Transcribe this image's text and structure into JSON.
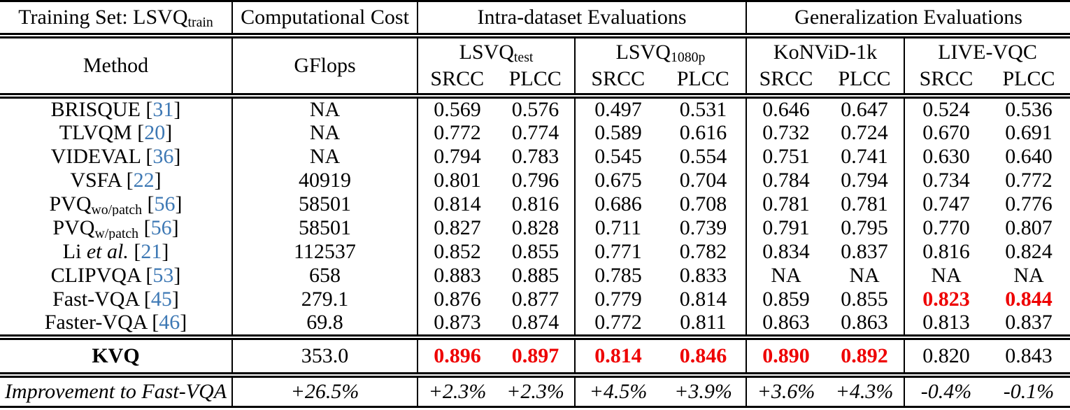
{
  "colors": {
    "citation_blue": "#3d78b4",
    "highlight_red": "#ee0000",
    "text": "#000000",
    "background": "#ffffff"
  },
  "citation_brackets": [
    "[",
    "]"
  ],
  "header": {
    "training_set": {
      "text": "Training Set: LSVQ",
      "sub": "train"
    },
    "computational_cost": "Computational Cost",
    "intra_group": "Intra-dataset Evaluations",
    "generalization_group": "Generalization Evaluations",
    "method": "Method",
    "gflops": "GFlops",
    "srcc": "SRCC",
    "plcc": "PLCC",
    "datasets": [
      {
        "name": "LSVQ",
        "sub": "test"
      },
      {
        "name": "LSVQ",
        "sub": "1080p"
      },
      {
        "name": "KoNViD-1k",
        "sub": ""
      },
      {
        "name": "LIVE-VQC",
        "sub": ""
      }
    ]
  },
  "rows": [
    {
      "method": "BRISQUE",
      "italic": "",
      "sub": "",
      "cite": "31",
      "gflops": "NA",
      "values": [
        "0.569",
        "0.576",
        "0.497",
        "0.531",
        "0.646",
        "0.647",
        "0.524",
        "0.536"
      ],
      "red": []
    },
    {
      "method": "TLVQM",
      "italic": "",
      "sub": "",
      "cite": "20",
      "gflops": "NA",
      "values": [
        "0.772",
        "0.774",
        "0.589",
        "0.616",
        "0.732",
        "0.724",
        "0.670",
        "0.691"
      ],
      "red": []
    },
    {
      "method": "VIDEVAL",
      "italic": "",
      "sub": "",
      "cite": "36",
      "gflops": "NA",
      "values": [
        "0.794",
        "0.783",
        "0.545",
        "0.554",
        "0.751",
        "0.741",
        "0.630",
        "0.640"
      ],
      "red": []
    },
    {
      "method": "VSFA",
      "italic": "",
      "sub": "",
      "cite": "22",
      "gflops": "40919",
      "values": [
        "0.801",
        "0.796",
        "0.675",
        "0.704",
        "0.784",
        "0.794",
        "0.734",
        "0.772"
      ],
      "red": []
    },
    {
      "method": "PVQ",
      "italic": "",
      "sub": "wo/patch",
      "cite": "56",
      "gflops": "58501",
      "values": [
        "0.814",
        "0.816",
        "0.686",
        "0.708",
        "0.781",
        "0.781",
        "0.747",
        "0.776"
      ],
      "red": []
    },
    {
      "method": "PVQ",
      "italic": "",
      "sub": "w/patch",
      "cite": "56",
      "gflops": "58501",
      "values": [
        "0.827",
        "0.828",
        "0.711",
        "0.739",
        "0.791",
        "0.795",
        "0.770",
        "0.807"
      ],
      "red": []
    },
    {
      "method": "Li",
      "italic": "et al.",
      "sub": "",
      "cite": "21",
      "gflops": "112537",
      "values": [
        "0.852",
        "0.855",
        "0.771",
        "0.782",
        "0.834",
        "0.837",
        "0.816",
        "0.824"
      ],
      "red": []
    },
    {
      "method": "CLIPVQA",
      "italic": "",
      "sub": "",
      "cite": "53",
      "gflops": "658",
      "values": [
        "0.883",
        "0.885",
        "0.785",
        "0.833",
        "NA",
        "NA",
        "NA",
        "NA"
      ],
      "red": []
    },
    {
      "method": "Fast-VQA",
      "italic": "",
      "sub": "",
      "cite": "45",
      "gflops": "279.1",
      "values": [
        "0.876",
        "0.877",
        "0.779",
        "0.814",
        "0.859",
        "0.855",
        "0.823",
        "0.844"
      ],
      "red": [
        6,
        7
      ]
    },
    {
      "method": "Faster-VQA",
      "italic": "",
      "sub": "",
      "cite": "46",
      "gflops": "69.8",
      "values": [
        "0.873",
        "0.874",
        "0.772",
        "0.811",
        "0.863",
        "0.863",
        "0.813",
        "0.837"
      ],
      "red": []
    }
  ],
  "kvq_row": {
    "method": "KVQ",
    "bold": true,
    "italic": "",
    "sub": "",
    "cite": "",
    "gflops": "353.0",
    "values": [
      "0.896",
      "0.897",
      "0.814",
      "0.846",
      "0.890",
      "0.892",
      "0.820",
      "0.843"
    ],
    "red": [
      0,
      1,
      2,
      3,
      4,
      5
    ]
  },
  "improvement_row": {
    "method": "Improvement to Fast-VQA",
    "italic": "",
    "sub": "",
    "cite": "",
    "gflops": "+26.5%",
    "values": [
      "+2.3%",
      "+2.3%",
      "+4.5%",
      "+3.9%",
      "+3.6%",
      "+4.3%",
      "-0.4%",
      "-0.1%"
    ],
    "red": []
  }
}
